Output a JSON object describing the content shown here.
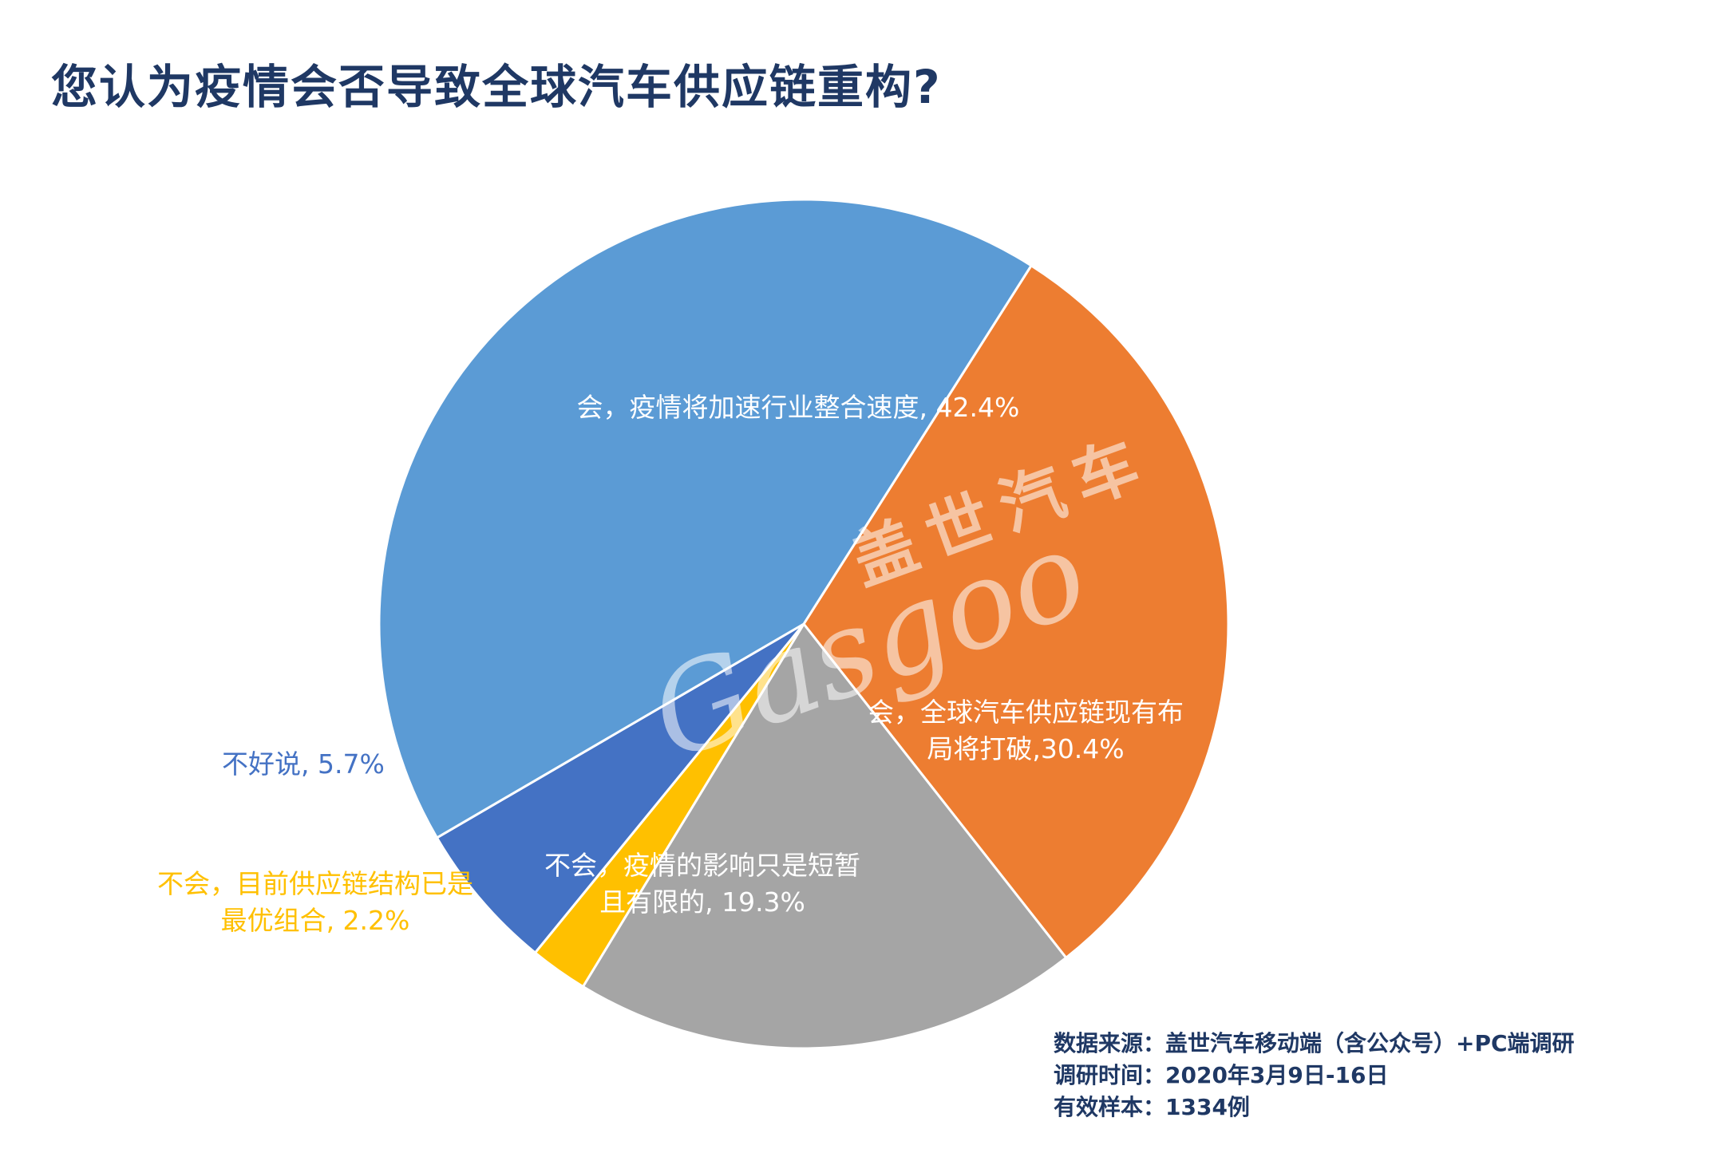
{
  "title": "您认为疫情会否导致全球汽车供应链重构?",
  "chart_data": {
    "type": "pie",
    "slices": [
      {
        "label_lines": [
          "会，疫情将加速行业整合速度, 42.4%"
        ],
        "value": 42.4,
        "color": "#5b9bd5",
        "label_color": "#ffffff"
      },
      {
        "label_lines": [
          "会，全球汽车供应链现有布",
          "局将打破,30.4%"
        ],
        "value": 30.4,
        "color": "#ed7d31",
        "label_color": "#ffffff"
      },
      {
        "label_lines": [
          "不会，疫情的影响只是短暂",
          "且有限的, 19.3%"
        ],
        "value": 19.3,
        "color": "#a5a5a5",
        "label_color": "#ffffff"
      },
      {
        "label_lines": [
          "不会，目前供应链结构已是",
          "最优组合, 2.2%"
        ],
        "value": 2.2,
        "color": "#ffc000",
        "label_color": "#ffc000"
      },
      {
        "label_lines": [
          "不好说, 5.7%"
        ],
        "value": 5.7,
        "color": "#4472c4",
        "label_color": "#4472c4"
      }
    ]
  },
  "watermark": {
    "cn": "盖世汽车",
    "en": "Gasgoo"
  },
  "source": {
    "line1": "数据来源：盖世汽车移动端（含公众号）+PC端调研",
    "line2": "调研时间：2020年3月9日-16日",
    "line3": "有效样本：1334例"
  }
}
